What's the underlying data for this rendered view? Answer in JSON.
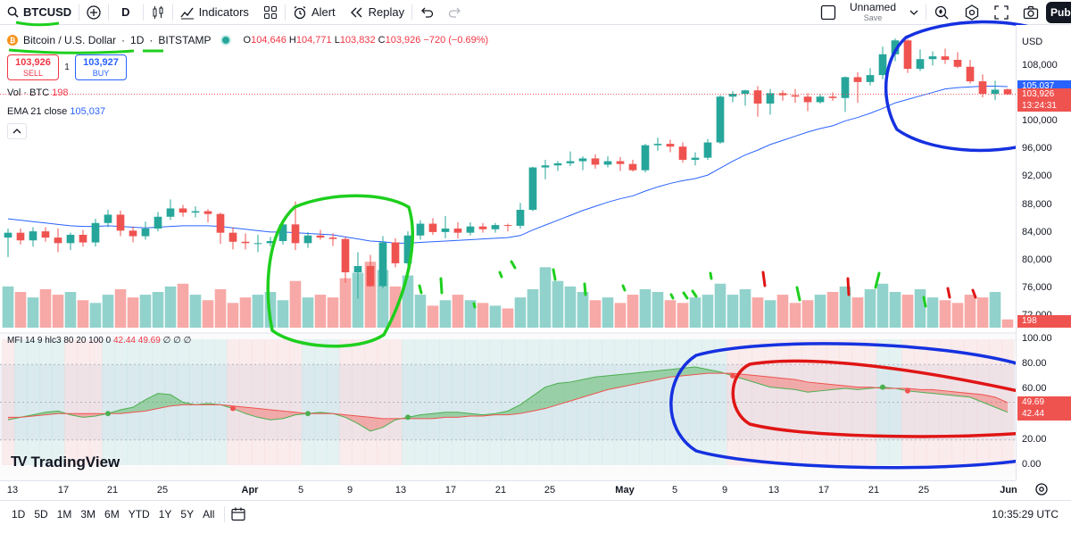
{
  "toolbar": {
    "symbol": "BTCUSD",
    "interval": "D",
    "indicators_label": "Indicators",
    "alert_label": "Alert",
    "replay_label": "Replay",
    "layout_name": "Unnamed",
    "layout_status": "Save",
    "publish_label": "Pub"
  },
  "legend": {
    "title": "Bitcoin / U.S. Dollar",
    "sep1": "·",
    "timeframe": "1D",
    "sep2": "·",
    "exchange": "BITSTAMP",
    "o_label": "O",
    "o_value": "104,646",
    "h_label": "H",
    "h_value": "104,771",
    "l_label": "L",
    "l_value": "103,832",
    "c_label": "C",
    "c_value": "103,926",
    "change": "−720 (−0.69%)"
  },
  "trade": {
    "sell_price": "103,926",
    "sell_label": "SELL",
    "spread": "1",
    "buy_price": "103,927",
    "buy_label": "BUY"
  },
  "indicators": {
    "vol_label": "Vol · BTC",
    "vol_value": "198",
    "ema_label": "EMA 21 close",
    "ema_value": "105,037",
    "mfi_label": "MFI 14 9 hlc3 80 20 100 0",
    "mfi_value1": "42.44",
    "mfi_value2": "49.69",
    "mfi_flags": "∅ ∅ ∅"
  },
  "price_axis": {
    "currency": "USD",
    "ticks": [
      "108,000",
      "104,000",
      "100,000",
      "96,000",
      "92,000",
      "88,000",
      "84,000",
      "80,000",
      "76,000",
      "72,000"
    ],
    "ema_tag": "105,037",
    "price_tag": "103,926",
    "countdown": "13:24:31",
    "volume_tag": "198"
  },
  "mfi_axis": {
    "ticks": [
      "100.00",
      "80.00",
      "60.00",
      "40.00",
      "20.00",
      "0.00"
    ],
    "tag1": "49.69",
    "tag2": "42.44"
  },
  "time_axis": {
    "labels": [
      "13",
      "17",
      "21",
      "25",
      "Apr",
      "5",
      "9",
      "13",
      "17",
      "21",
      "25",
      "May",
      "5",
      "9",
      "13",
      "17",
      "21",
      "25",
      "Jun"
    ],
    "bold": [
      "Apr",
      "May",
      "Jun"
    ]
  },
  "bottom": {
    "ranges": [
      "1D",
      "5D",
      "1M",
      "3M",
      "6M",
      "YTD",
      "1Y",
      "5Y",
      "All"
    ],
    "clock": "10:35:29 UTC"
  },
  "brand": {
    "name": "TradingView",
    "mark": "TV"
  },
  "colors": {
    "up": "#26a69a",
    "down": "#ef5350",
    "ema": "#2962ff",
    "accent": "#2962ff"
  },
  "chart_data": {
    "type": "candlestick",
    "symbol": "BTCUSD",
    "interval": "1D",
    "candles": [
      {
        "o": 83300,
        "h": 84600,
        "l": 80500,
        "c": 84000
      },
      {
        "o": 84000,
        "h": 84600,
        "l": 82300,
        "c": 82900
      },
      {
        "o": 82900,
        "h": 84800,
        "l": 82000,
        "c": 84200
      },
      {
        "o": 84200,
        "h": 84800,
        "l": 82700,
        "c": 83300
      },
      {
        "o": 83300,
        "h": 84600,
        "l": 81200,
        "c": 82500
      },
      {
        "o": 82500,
        "h": 84000,
        "l": 81500,
        "c": 83700
      },
      {
        "o": 83700,
        "h": 84400,
        "l": 82000,
        "c": 82600
      },
      {
        "o": 82600,
        "h": 86000,
        "l": 82000,
        "c": 85400
      },
      {
        "o": 85400,
        "h": 87300,
        "l": 84800,
        "c": 86600
      },
      {
        "o": 86600,
        "h": 87200,
        "l": 83500,
        "c": 84300
      },
      {
        "o": 84300,
        "h": 84900,
        "l": 82600,
        "c": 83500
      },
      {
        "o": 83500,
        "h": 85600,
        "l": 83000,
        "c": 84600
      },
      {
        "o": 84600,
        "h": 87000,
        "l": 84200,
        "c": 86300
      },
      {
        "o": 86300,
        "h": 88800,
        "l": 85800,
        "c": 87500
      },
      {
        "o": 87500,
        "h": 88000,
        "l": 86300,
        "c": 86900
      },
      {
        "o": 86900,
        "h": 87800,
        "l": 86200,
        "c": 87100
      },
      {
        "o": 87100,
        "h": 87400,
        "l": 85500,
        "c": 86700
      },
      {
        "o": 86700,
        "h": 86900,
        "l": 82400,
        "c": 84000
      },
      {
        "o": 84000,
        "h": 84800,
        "l": 81600,
        "c": 82700
      },
      {
        "o": 82700,
        "h": 83900,
        "l": 81600,
        "c": 82500
      },
      {
        "o": 82500,
        "h": 83700,
        "l": 81200,
        "c": 82500
      },
      {
        "o": 82500,
        "h": 83400,
        "l": 82000,
        "c": 82800
      },
      {
        "o": 82800,
        "h": 86000,
        "l": 82300,
        "c": 85200
      },
      {
        "o": 85200,
        "h": 88500,
        "l": 81500,
        "c": 82500
      },
      {
        "o": 82500,
        "h": 84100,
        "l": 81800,
        "c": 83600
      },
      {
        "o": 83600,
        "h": 84400,
        "l": 83000,
        "c": 83300
      },
      {
        "o": 83300,
        "h": 83900,
        "l": 82100,
        "c": 83100
      },
      {
        "o": 83100,
        "h": 83400,
        "l": 76800,
        "c": 78300
      },
      {
        "o": 78300,
        "h": 81200,
        "l": 74500,
        "c": 79200
      },
      {
        "o": 79200,
        "h": 80800,
        "l": 76200,
        "c": 76300
      },
      {
        "o": 76300,
        "h": 83500,
        "l": 76000,
        "c": 82600
      },
      {
        "o": 82600,
        "h": 83200,
        "l": 79000,
        "c": 79600
      },
      {
        "o": 79600,
        "h": 84200,
        "l": 79200,
        "c": 83600
      },
      {
        "o": 83600,
        "h": 85800,
        "l": 83000,
        "c": 85300
      },
      {
        "o": 85300,
        "h": 86100,
        "l": 83700,
        "c": 84100
      },
      {
        "o": 84100,
        "h": 86400,
        "l": 83200,
        "c": 84600
      },
      {
        "o": 84600,
        "h": 85500,
        "l": 83200,
        "c": 84000
      },
      {
        "o": 84000,
        "h": 85500,
        "l": 83600,
        "c": 84900
      },
      {
        "o": 84900,
        "h": 85400,
        "l": 84000,
        "c": 84500
      },
      {
        "o": 84500,
        "h": 85400,
        "l": 84000,
        "c": 85100
      },
      {
        "o": 85100,
        "h": 85300,
        "l": 84200,
        "c": 85000
      },
      {
        "o": 85000,
        "h": 88300,
        "l": 84600,
        "c": 87300
      },
      {
        "o": 87300,
        "h": 93500,
        "l": 87100,
        "c": 93400
      },
      {
        "o": 93400,
        "h": 94500,
        "l": 91700,
        "c": 93700
      },
      {
        "o": 93700,
        "h": 94300,
        "l": 92900,
        "c": 94000
      },
      {
        "o": 94000,
        "h": 95700,
        "l": 93600,
        "c": 94300
      },
      {
        "o": 94300,
        "h": 95000,
        "l": 93000,
        "c": 94700
      },
      {
        "o": 94700,
        "h": 95300,
        "l": 93200,
        "c": 93800
      },
      {
        "o": 93800,
        "h": 95000,
        "l": 93400,
        "c": 94300
      },
      {
        "o": 94300,
        "h": 94900,
        "l": 92900,
        "c": 93900
      },
      {
        "o": 93900,
        "h": 94500,
        "l": 92800,
        "c": 93000
      },
      {
        "o": 93000,
        "h": 96800,
        "l": 92700,
        "c": 96600
      },
      {
        "o": 96600,
        "h": 97700,
        "l": 95800,
        "c": 96800
      },
      {
        "o": 96800,
        "h": 97400,
        "l": 95600,
        "c": 96400
      },
      {
        "o": 96400,
        "h": 97000,
        "l": 94100,
        "c": 94500
      },
      {
        "o": 94500,
        "h": 95600,
        "l": 93700,
        "c": 94800
      },
      {
        "o": 94800,
        "h": 97500,
        "l": 94500,
        "c": 97000
      },
      {
        "o": 97000,
        "h": 103800,
        "l": 96800,
        "c": 103600
      },
      {
        "o": 103600,
        "h": 104400,
        "l": 102800,
        "c": 104000
      },
      {
        "o": 104000,
        "h": 104600,
        "l": 102300,
        "c": 104500
      },
      {
        "o": 104500,
        "h": 105100,
        "l": 100700,
        "c": 102600
      },
      {
        "o": 102600,
        "h": 104700,
        "l": 101000,
        "c": 104100
      },
      {
        "o": 104100,
        "h": 104500,
        "l": 103000,
        "c": 103800
      },
      {
        "o": 103800,
        "h": 104700,
        "l": 102700,
        "c": 103600
      },
      {
        "o": 103600,
        "h": 104100,
        "l": 101500,
        "c": 102800
      },
      {
        "o": 102800,
        "h": 104000,
        "l": 102600,
        "c": 103600
      },
      {
        "o": 103600,
        "h": 104200,
        "l": 103000,
        "c": 103400
      },
      {
        "o": 103400,
        "h": 106500,
        "l": 101400,
        "c": 106400
      },
      {
        "o": 106400,
        "h": 107100,
        "l": 102700,
        "c": 105700
      },
      {
        "o": 105700,
        "h": 107700,
        "l": 105200,
        "c": 106700
      },
      {
        "o": 106700,
        "h": 110800,
        "l": 106100,
        "c": 109700
      },
      {
        "o": 109700,
        "h": 112000,
        "l": 108700,
        "c": 111700
      },
      {
        "o": 111700,
        "h": 111900,
        "l": 107000,
        "c": 107600
      },
      {
        "o": 107600,
        "h": 110400,
        "l": 107300,
        "c": 109000
      },
      {
        "o": 109000,
        "h": 110100,
        "l": 108100,
        "c": 109400
      },
      {
        "o": 109400,
        "h": 110500,
        "l": 108300,
        "c": 108900
      },
      {
        "o": 108900,
        "h": 110000,
        "l": 107700,
        "c": 107900
      },
      {
        "o": 107900,
        "h": 108900,
        "l": 105500,
        "c": 105800
      },
      {
        "o": 105800,
        "h": 106800,
        "l": 103500,
        "c": 104000
      },
      {
        "o": 104000,
        "h": 105900,
        "l": 103100,
        "c": 104600
      },
      {
        "o": 104646,
        "h": 104771,
        "l": 103832,
        "c": 103926
      }
    ],
    "ema": [
      86000,
      85800,
      85600,
      85400,
      85200,
      85000,
      84900,
      84900,
      85000,
      84900,
      84800,
      84700,
      84800,
      84900,
      85000,
      85000,
      85000,
      84900,
      84700,
      84500,
      84300,
      84100,
      84100,
      84000,
      83900,
      83800,
      83700,
      83400,
      83100,
      82800,
      82700,
      82500,
      82500,
      82600,
      82700,
      82800,
      82900,
      83000,
      83100,
      83200,
      83300,
      83600,
      84400,
      85100,
      85800,
      86500,
      87200,
      87800,
      88400,
      88900,
      89300,
      90000,
      90600,
      91100,
      91500,
      91800,
      92300,
      93300,
      94300,
      95200,
      95900,
      96700,
      97300,
      97900,
      98500,
      99000,
      99400,
      100100,
      100600,
      101200,
      101900,
      102700,
      103200,
      103700,
      104200,
      104700,
      104900,
      105000,
      105100,
      105100,
      105037
    ],
    "volume": [
      15,
      13,
      11,
      14,
      12,
      13,
      10,
      9,
      12,
      14,
      11,
      12,
      13,
      15,
      16,
      12,
      10,
      14,
      9,
      11,
      12,
      13,
      10,
      17,
      11,
      12,
      11,
      18,
      20,
      24,
      21,
      15,
      19,
      12,
      8,
      10,
      12,
      10,
      9,
      8,
      7,
      11,
      14,
      22,
      17,
      15,
      13,
      10,
      11,
      9,
      12,
      14,
      13,
      10,
      9,
      11,
      12,
      16,
      12,
      14,
      11,
      10,
      12,
      9,
      10,
      12,
      13,
      15,
      11,
      14,
      16,
      13,
      12,
      14,
      11,
      10,
      9,
      12,
      11,
      13,
      3
    ],
    "mfi": [
      36,
      38,
      40,
      42,
      43,
      40,
      38,
      39,
      41,
      44,
      46,
      52,
      57,
      56,
      50,
      48,
      49,
      48,
      45,
      41,
      38,
      36,
      37,
      40,
      41,
      42,
      41,
      38,
      33,
      27,
      30,
      36,
      38,
      40,
      41,
      42,
      42,
      41,
      40,
      41,
      43,
      48,
      55,
      62,
      65,
      66,
      68,
      70,
      71,
      72,
      73,
      74,
      75,
      76,
      77,
      78,
      76,
      74,
      71,
      68,
      65,
      62,
      61,
      60,
      58,
      59,
      60,
      61,
      60,
      61,
      62,
      61,
      59,
      58,
      57,
      56,
      55,
      54,
      50,
      46,
      42
    ],
    "mfi_signal": [
      38,
      38,
      39,
      40,
      41,
      41,
      41,
      41,
      41,
      41,
      42,
      43,
      45,
      47,
      48,
      48,
      48,
      48,
      47,
      46,
      45,
      44,
      43,
      42,
      41,
      41,
      41,
      40,
      39,
      38,
      37,
      37,
      37,
      37,
      37,
      38,
      38,
      39,
      39,
      40,
      40,
      41,
      43,
      45,
      48,
      51,
      54,
      57,
      60,
      62,
      64,
      66,
      68,
      70,
      71,
      72,
      73,
      73,
      73,
      72,
      71,
      70,
      69,
      68,
      66,
      65,
      64,
      63,
      62,
      62,
      61,
      61,
      61,
      60,
      60,
      59,
      58,
      57,
      56,
      54,
      49.69
    ],
    "price_range": [
      70000,
      112000
    ],
    "mfi_range": [
      0,
      100
    ],
    "mfi_bands": [
      20,
      80
    ]
  }
}
